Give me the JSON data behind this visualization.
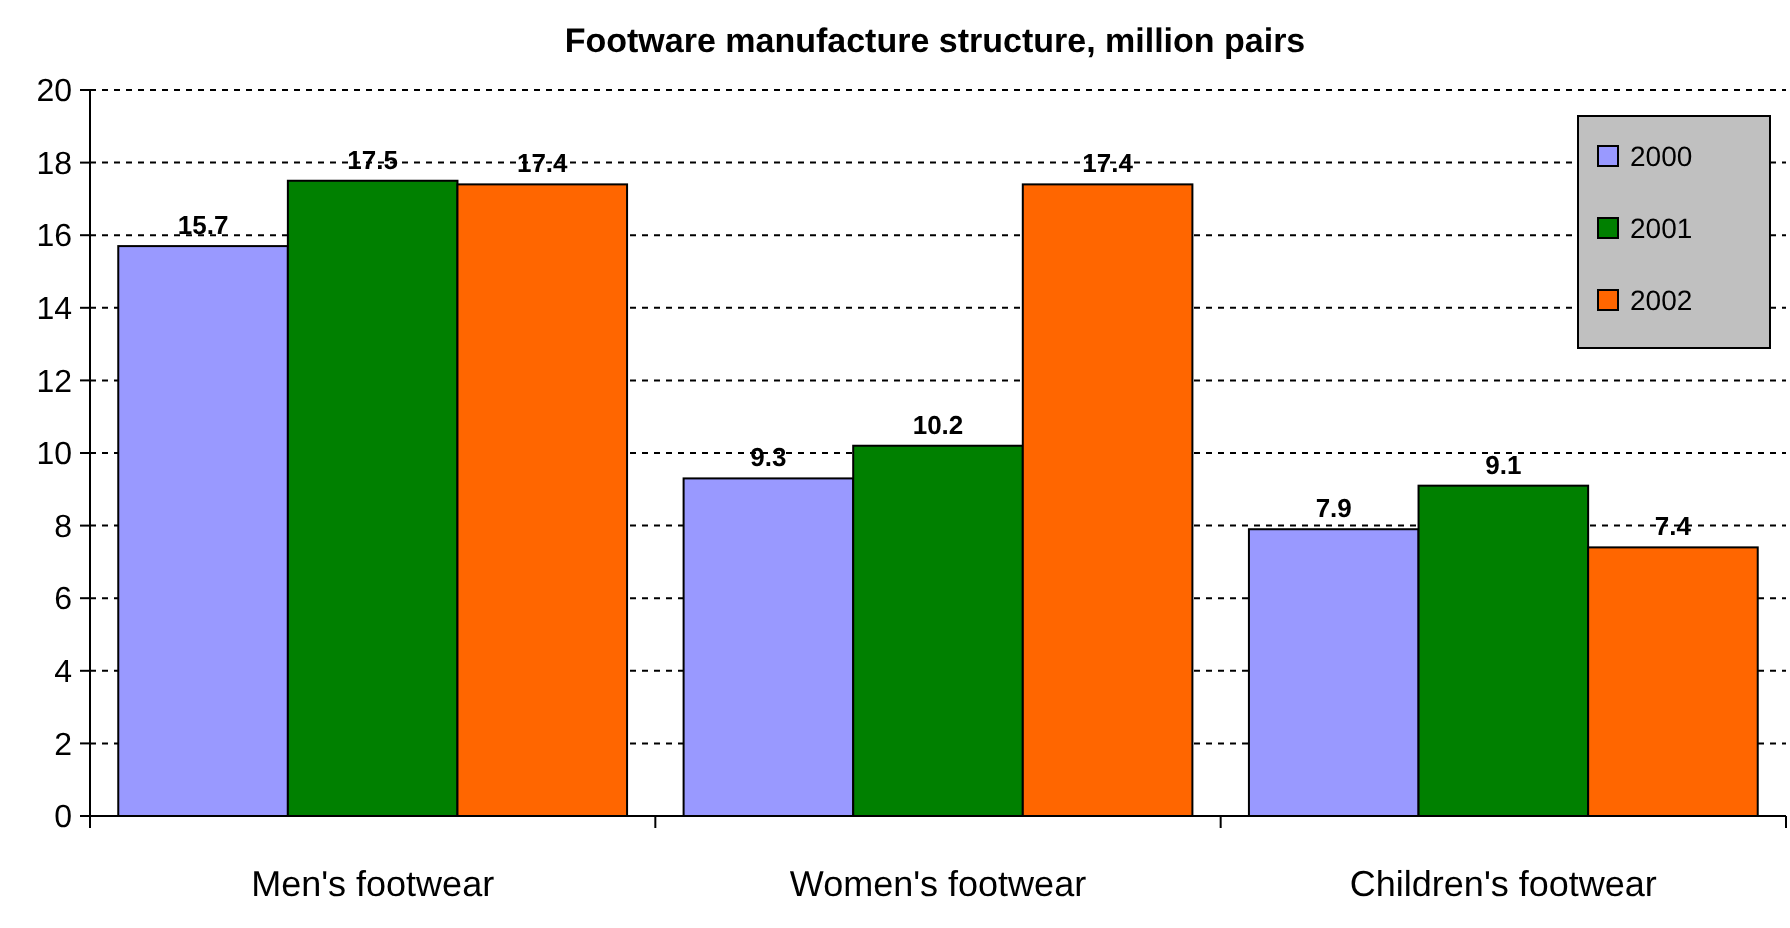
{
  "chart_data": {
    "type": "bar",
    "title": "Footware manufacture structure, million pairs",
    "categories": [
      "Men's footwear",
      "Women's footwear",
      "Children's footwear"
    ],
    "series": [
      {
        "name": "2000",
        "color": "#9999ff",
        "values": [
          15.7,
          9.3,
          7.9
        ]
      },
      {
        "name": "2001",
        "color": "#008000",
        "values": [
          17.5,
          10.2,
          9.1
        ]
      },
      {
        "name": "2002",
        "color": "#ff6600",
        "values": [
          17.4,
          17.4,
          7.4
        ]
      }
    ],
    "ylim": [
      0,
      20
    ],
    "yticks": [
      0,
      2,
      4,
      6,
      8,
      10,
      12,
      14,
      16,
      18,
      20
    ],
    "grid": "y",
    "legend": "top right",
    "data_labels": true
  }
}
